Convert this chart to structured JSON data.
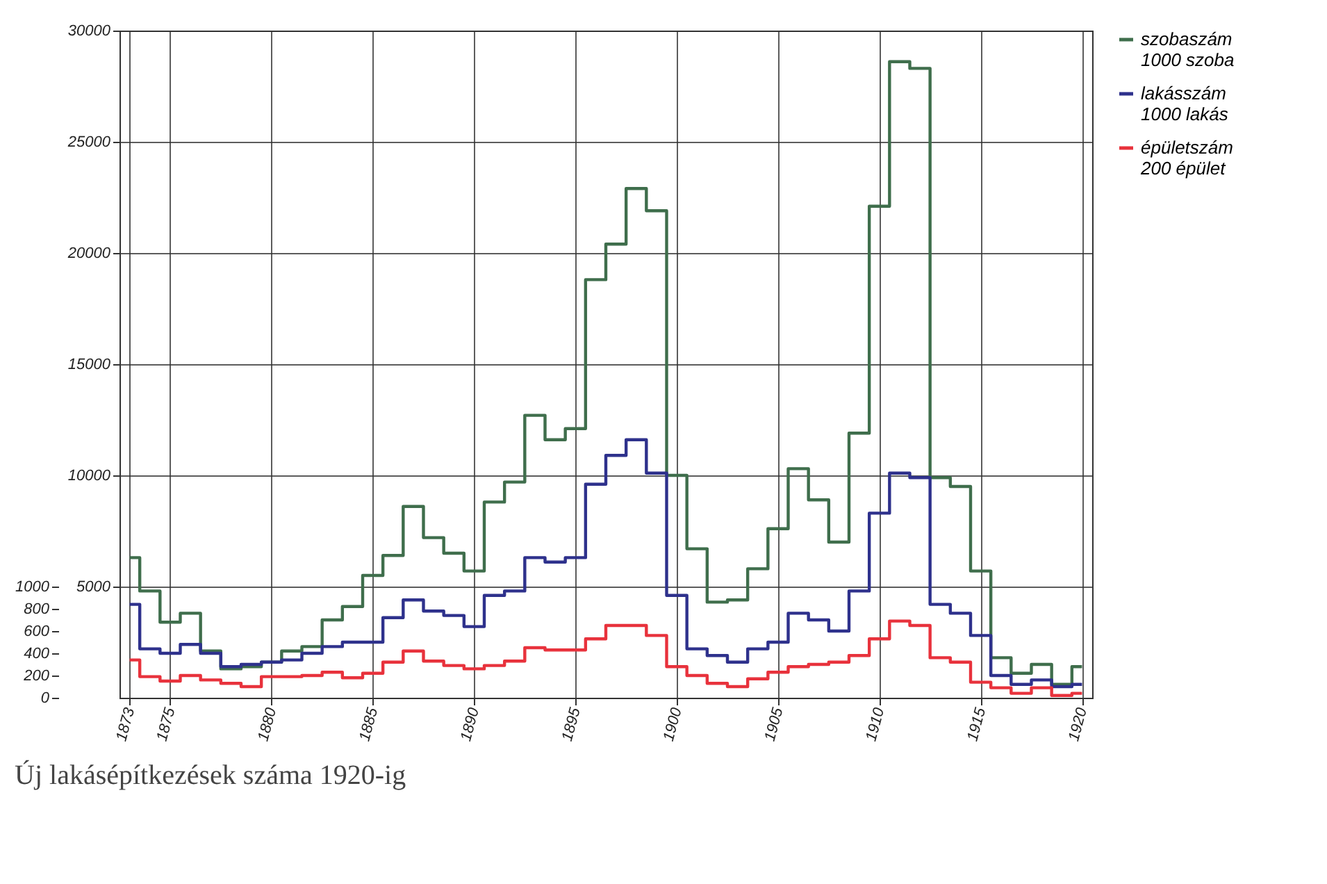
{
  "chart_data": {
    "type": "step",
    "title": "Új lakásépítkezések száma 1920-ig",
    "x": [
      1873,
      1874,
      1875,
      1876,
      1877,
      1878,
      1879,
      1880,
      1881,
      1882,
      1883,
      1884,
      1885,
      1886,
      1887,
      1888,
      1889,
      1890,
      1891,
      1892,
      1893,
      1894,
      1895,
      1896,
      1897,
      1898,
      1899,
      1900,
      1901,
      1902,
      1903,
      1904,
      1905,
      1906,
      1907,
      1908,
      1909,
      1910,
      1911,
      1912,
      1913,
      1914,
      1915,
      1916,
      1917,
      1918,
      1919,
      1920
    ],
    "series": [
      {
        "name": "szobaszám",
        "color": "#3f6e4c",
        "values": [
          6300,
          4800,
          3400,
          3800,
          2100,
          1300,
          1400,
          1600,
          2100,
          2300,
          3500,
          4100,
          5500,
          6400,
          8600,
          7200,
          6500,
          5700,
          8800,
          9700,
          12700,
          11600,
          12100,
          18800,
          20400,
          22900,
          21900,
          10000,
          6700,
          4300,
          4400,
          5800,
          7600,
          10300,
          8900,
          7000,
          11900,
          22100,
          28600,
          28300,
          9900,
          9500,
          5700,
          1800,
          1100,
          1500,
          600,
          1400
        ]
      },
      {
        "name": "lakásszám",
        "color": "#2e318c",
        "values": [
          4200,
          2200,
          2000,
          2400,
          2000,
          1400,
          1500,
          1600,
          1700,
          2000,
          2300,
          2500,
          2500,
          3600,
          4400,
          3900,
          3700,
          3200,
          4600,
          4800,
          6300,
          6100,
          6300,
          9600,
          10900,
          11600,
          10100,
          4600,
          2200,
          1900,
          1600,
          2200,
          2500,
          3800,
          3500,
          3000,
          4800,
          8300,
          10100,
          9900,
          4200,
          3800,
          2800,
          1000,
          600,
          800,
          500,
          600
        ]
      },
      {
        "name": "épületszám",
        "color": "#e8323c",
        "axis": "y2",
        "values": [
          340,
          190,
          150,
          200,
          160,
          130,
          100,
          190,
          190,
          200,
          230,
          180,
          220,
          320,
          420,
          330,
          290,
          260,
          290,
          330,
          450,
          430,
          430,
          530,
          650,
          650,
          560,
          280,
          200,
          130,
          100,
          170,
          230,
          280,
          300,
          320,
          380,
          530,
          690,
          650,
          360,
          320,
          140,
          90,
          40,
          90,
          20,
          40
        ]
      }
    ],
    "annotations": [
      "1000 szoba",
      "1000 lakás",
      "200 épület"
    ],
    "xlim": [
      1872.5,
      1920.5
    ],
    "xticks": [
      1873,
      1875,
      1880,
      1885,
      1890,
      1895,
      1900,
      1905,
      1910,
      1915,
      1920
    ],
    "ylim": [
      0,
      30000
    ],
    "yticks": [
      5000,
      10000,
      15000,
      20000,
      25000,
      30000
    ],
    "y2lim": [
      0,
      6000
    ],
    "y2ticks": [
      0,
      200,
      400,
      600,
      800,
      1000
    ],
    "grid": true,
    "legend": "top right",
    "line_style": "solid"
  }
}
